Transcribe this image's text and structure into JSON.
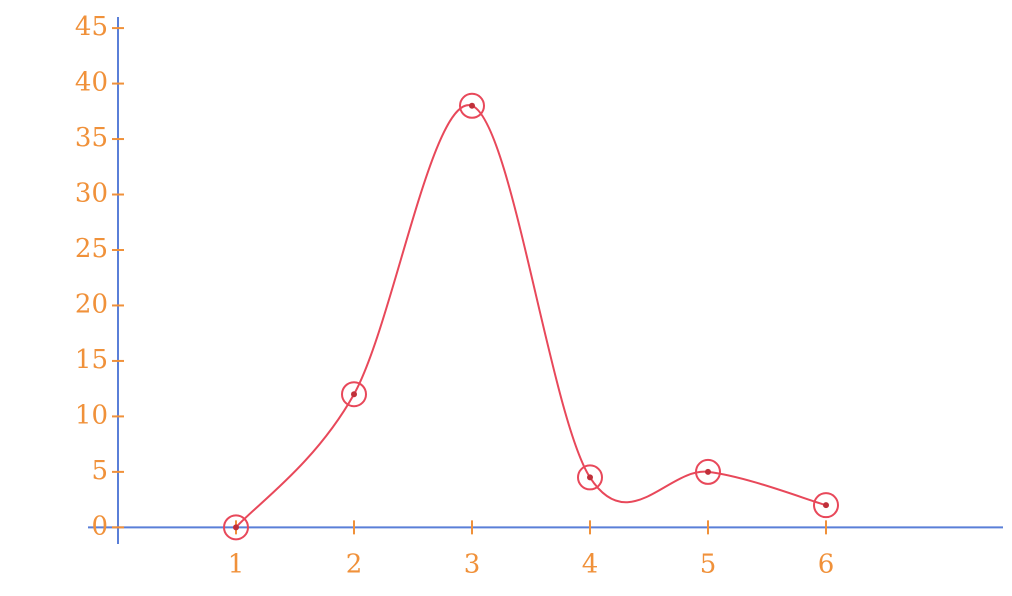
{
  "chart_data": {
    "type": "line",
    "x": [
      1,
      2,
      3,
      4,
      5,
      6
    ],
    "series": [
      {
        "color": "#e8485a",
        "values": [
          0,
          12,
          38,
          4.5,
          5,
          2
        ]
      }
    ],
    "xlim": [
      0,
      7.5
    ],
    "xticks": [
      1,
      2,
      3,
      4,
      5,
      6
    ],
    "ylim": [
      -1.5,
      46
    ],
    "yticks": [
      0,
      5,
      10,
      15,
      20,
      25,
      30,
      35,
      40,
      45
    ],
    "axis_color": "#5a7fd8",
    "label_color": "#f0913a",
    "grid": false
  }
}
